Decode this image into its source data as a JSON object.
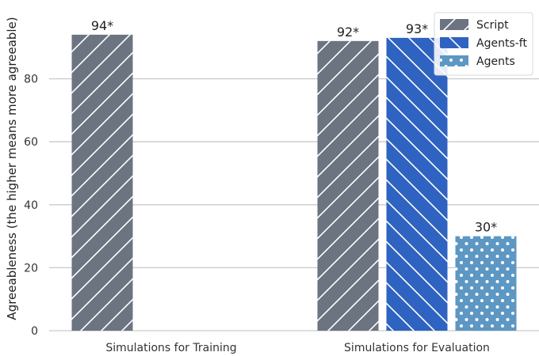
{
  "chart_data": {
    "type": "bar",
    "title": "",
    "xlabel": "",
    "ylabel": "Agreeableness (the higher means more agreeable)",
    "ylim": [
      0,
      100
    ],
    "yticks": [
      0,
      20,
      40,
      60,
      80
    ],
    "grid": true,
    "legend_position": "top-right",
    "categories": [
      "Simulations for Training",
      "Simulations for Evaluation"
    ],
    "series": [
      {
        "name": "Script",
        "color": "#6b7480",
        "pattern": "forward-diagonal",
        "values": [
          94,
          92
        ],
        "labels": [
          "94*",
          "92*"
        ]
      },
      {
        "name": "Agents-ft",
        "color": "#2f63c1",
        "pattern": "back-diagonal",
        "values": [
          null,
          93
        ],
        "labels": [
          null,
          "93*"
        ]
      },
      {
        "name": "Agents",
        "color": "#5d97c3",
        "pattern": "dots",
        "values": [
          null,
          30
        ],
        "labels": [
          null,
          "30*"
        ]
      }
    ]
  }
}
